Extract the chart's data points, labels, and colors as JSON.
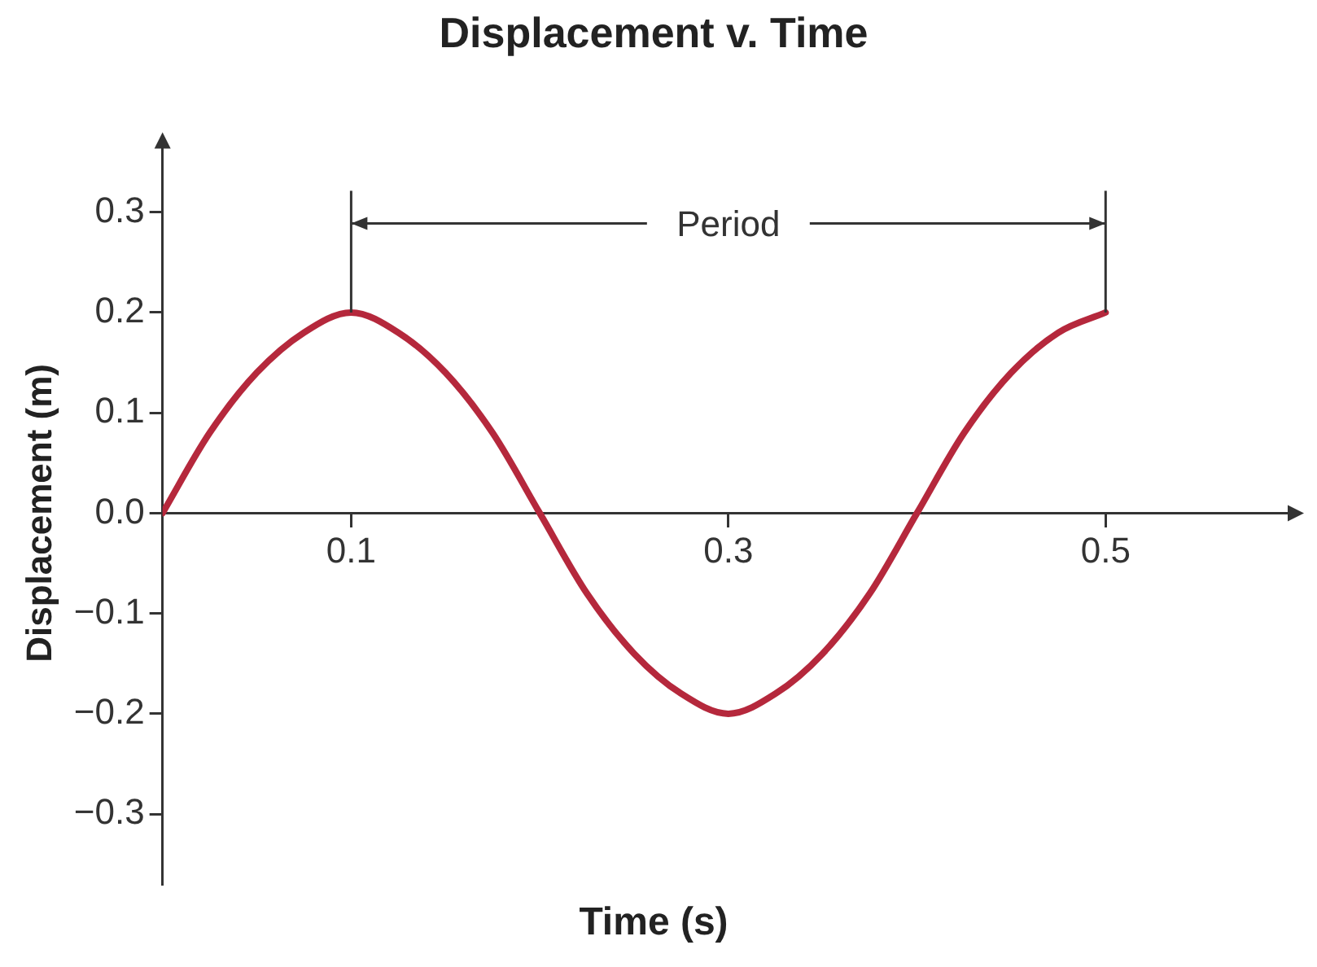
{
  "chart_data": {
    "type": "line",
    "title": "Displacement v. Time",
    "xlabel": "Time (s)",
    "ylabel": "Displacement (m)",
    "x": [
      0,
      0.025,
      0.05,
      0.075,
      0.1,
      0.125,
      0.15,
      0.175,
      0.2,
      0.225,
      0.25,
      0.275,
      0.3,
      0.325,
      0.35,
      0.375,
      0.4,
      0.425,
      0.45,
      0.475,
      0.5
    ],
    "series": [
      {
        "color": "#b5283c",
        "values": [
          0,
          0.08,
          0.14,
          0.18,
          0.2,
          0.18,
          0.14,
          0.08,
          0,
          -0.08,
          -0.14,
          -0.18,
          -0.2,
          -0.18,
          -0.14,
          -0.08,
          0,
          0.08,
          0.14,
          0.18,
          0.2
        ]
      }
    ],
    "xlim": [
      0,
      0.6
    ],
    "ylim": [
      -0.37,
      0.37
    ],
    "xticks": [
      0.1,
      0.3,
      0.5
    ],
    "yticks": [
      {
        "value": -0.3,
        "label": "−0.3"
      },
      {
        "value": -0.2,
        "label": "−0.2"
      },
      {
        "value": -0.1,
        "label": "−0.1"
      },
      {
        "value": 0,
        "label": "0.0"
      },
      0.1,
      0.2,
      0.3
    ],
    "annotations": [
      "Period"
    ],
    "marker": "none",
    "line_style": "solid",
    "legend": false
  }
}
